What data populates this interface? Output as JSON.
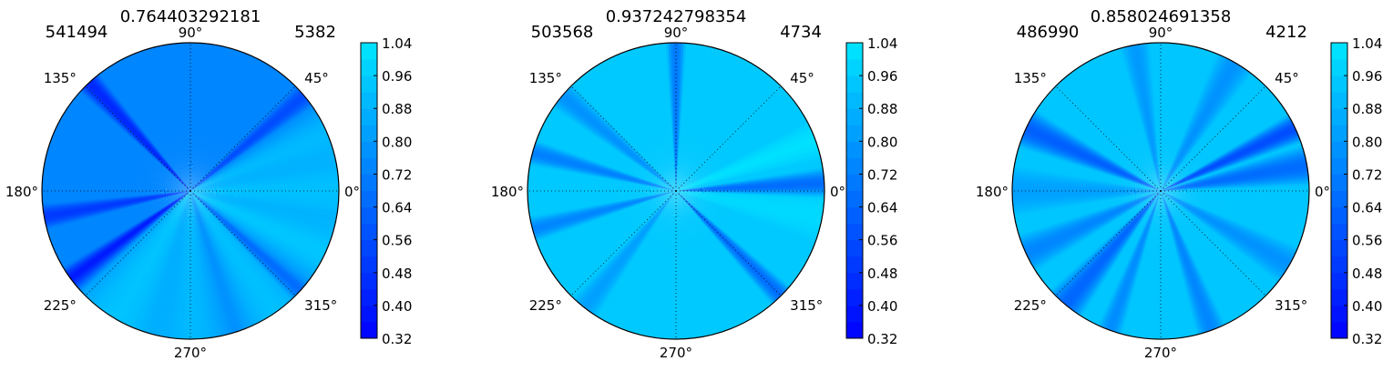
{
  "chart_data": [
    {
      "type": "heatmap",
      "projection": "polar",
      "title": "0.764403292181",
      "left_label": "541494",
      "right_label": "5382",
      "theta_tick_labels": [
        "0°",
        "45°",
        "90°",
        "135°",
        "180°",
        "225°",
        "270°",
        "315°"
      ],
      "colorbar": {
        "ticks": [
          "1.04",
          "0.96",
          "0.88",
          "0.80",
          "0.72",
          "0.64",
          "0.56",
          "0.48",
          "0.40",
          "0.32"
        ],
        "range": [
          0.32,
          1.04
        ]
      },
      "background_value": 0.74,
      "wedges": [
        {
          "angle": 0,
          "half_width": 22,
          "value": 0.92
        },
        {
          "angle": 22,
          "half_width": 14,
          "value": 0.9
        },
        {
          "angle": 40,
          "half_width": 5,
          "value": 0.56
        },
        {
          "angle": 133,
          "half_width": 5,
          "value": 0.44
        },
        {
          "angle": 190,
          "half_width": 5,
          "value": 0.5
        },
        {
          "angle": 217,
          "half_width": 6,
          "value": 0.38
        },
        {
          "angle": 240,
          "half_width": 24,
          "value": 0.93
        },
        {
          "angle": 270,
          "half_width": 20,
          "value": 0.9
        },
        {
          "angle": 305,
          "half_width": 18,
          "value": 0.92
        },
        {
          "angle": 318,
          "half_width": 5,
          "value": 0.66
        },
        {
          "angle": 335,
          "half_width": 16,
          "value": 0.94
        }
      ],
      "grid": true
    },
    {
      "type": "heatmap",
      "projection": "polar",
      "title": "0.937242798354",
      "left_label": "503568",
      "right_label": "4734",
      "theta_tick_labels": [
        "0°",
        "45°",
        "90°",
        "135°",
        "180°",
        "225°",
        "270°",
        "315°"
      ],
      "colorbar": {
        "ticks": [
          "1.04",
          "0.96",
          "0.88",
          "0.80",
          "0.72",
          "0.64",
          "0.56",
          "0.48",
          "0.40",
          "0.32"
        ],
        "range": [
          0.32,
          1.04
        ]
      },
      "background_value": 0.95,
      "wedges": [
        {
          "angle": 3,
          "half_width": 6,
          "value": 0.66
        },
        {
          "angle": 20,
          "half_width": 8,
          "value": 1.02
        },
        {
          "angle": 90,
          "half_width": 4,
          "value": 0.7
        },
        {
          "angle": 140,
          "half_width": 6,
          "value": 0.78
        },
        {
          "angle": 165,
          "half_width": 5,
          "value": 0.72
        },
        {
          "angle": 195,
          "half_width": 5,
          "value": 0.74
        },
        {
          "angle": 232,
          "half_width": 6,
          "value": 0.82
        },
        {
          "angle": 315,
          "half_width": 5,
          "value": 0.66
        },
        {
          "angle": 350,
          "half_width": 10,
          "value": 1.0
        }
      ],
      "grid": true
    },
    {
      "type": "heatmap",
      "projection": "polar",
      "title": "0.858024691358",
      "left_label": "486990",
      "right_label": "4212",
      "theta_tick_labels": [
        "0°",
        "45°",
        "90°",
        "135°",
        "180°",
        "225°",
        "270°",
        "315°"
      ],
      "colorbar": {
        "ticks": [
          "1.04",
          "0.96",
          "0.88",
          "0.80",
          "0.72",
          "0.64",
          "0.56",
          "0.48",
          "0.40",
          "0.32"
        ],
        "range": [
          0.32,
          1.04
        ]
      },
      "background_value": 0.94,
      "wedges": [
        {
          "angle": 10,
          "half_width": 8,
          "value": 0.66
        },
        {
          "angle": 25,
          "half_width": 6,
          "value": 0.56
        },
        {
          "angle": 60,
          "half_width": 8,
          "value": 0.78
        },
        {
          "angle": 100,
          "half_width": 6,
          "value": 0.8
        },
        {
          "angle": 155,
          "half_width": 8,
          "value": 0.62
        },
        {
          "angle": 180,
          "half_width": 10,
          "value": 0.82
        },
        {
          "angle": 205,
          "half_width": 8,
          "value": 0.74
        },
        {
          "angle": 230,
          "half_width": 8,
          "value": 0.64
        },
        {
          "angle": 250,
          "half_width": 5,
          "value": 0.76
        },
        {
          "angle": 290,
          "half_width": 6,
          "value": 0.74
        },
        {
          "angle": 330,
          "half_width": 8,
          "value": 0.78
        }
      ],
      "grid": true
    }
  ]
}
